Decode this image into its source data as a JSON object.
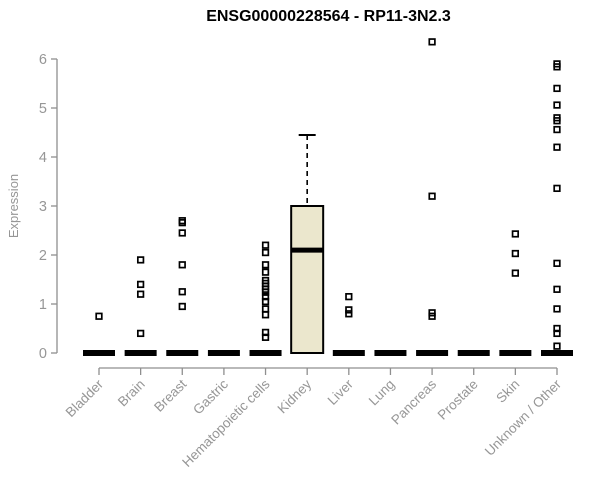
{
  "chart_data": {
    "type": "boxplot",
    "title": "ENSG00000228564 - RP11-3N2.3",
    "ylabel": "Expression",
    "xlabel": "",
    "ylim": [
      0,
      6
    ],
    "yticks": [
      0,
      1,
      2,
      3,
      4,
      5,
      6
    ],
    "legend": "none",
    "grid": false,
    "colors": {
      "box_fill": "#EBE7CD",
      "box_stroke": "#000000",
      "median": "#000000",
      "axis": "#8F8F8F",
      "tick_labels": "#969696",
      "title": "#000000",
      "points": "#000000"
    },
    "groups": [
      {
        "label": "Bladder",
        "q1": 0,
        "median": 0,
        "q3": 0,
        "whisker_low": 0,
        "whisker_high": 0,
        "points": [
          0.75
        ]
      },
      {
        "label": "Brain",
        "q1": 0,
        "median": 0,
        "q3": 0,
        "whisker_low": 0,
        "whisker_high": 0,
        "points": [
          1.9,
          1.4,
          1.2,
          0.4
        ]
      },
      {
        "label": "Breast",
        "q1": 0,
        "median": 0,
        "q3": 0,
        "whisker_low": 0,
        "whisker_high": 0,
        "points": [
          2.7,
          2.66,
          2.45,
          1.8,
          1.25,
          0.95
        ]
      },
      {
        "label": "Gastric",
        "q1": 0,
        "median": 0,
        "q3": 0,
        "whisker_low": 0,
        "whisker_high": 0,
        "points": []
      },
      {
        "label": "Hematopoietic cells",
        "q1": 0,
        "median": 0,
        "q3": 0,
        "whisker_low": 0,
        "whisker_high": 0,
        "points": [
          2.2,
          2.05,
          1.8,
          1.65,
          1.48,
          1.42,
          1.36,
          1.3,
          1.24,
          1.15,
          1.05,
          0.9,
          0.78,
          0.42,
          0.32
        ]
      },
      {
        "label": "Kidney",
        "q1": 0,
        "median": 2.1,
        "q3": 3.0,
        "whisker_low": 0,
        "whisker_high": 4.45,
        "points": []
      },
      {
        "label": "Liver",
        "q1": 0,
        "median": 0,
        "q3": 0,
        "whisker_low": 0,
        "whisker_high": 0,
        "points": [
          1.15,
          0.88,
          0.8
        ]
      },
      {
        "label": "Lung",
        "q1": 0,
        "median": 0,
        "q3": 0,
        "whisker_low": 0,
        "whisker_high": 0,
        "points": []
      },
      {
        "label": "Pancreas",
        "q1": 0,
        "median": 0,
        "q3": 0,
        "whisker_low": 0,
        "whisker_high": 0,
        "points": [
          6.35,
          3.2,
          0.82,
          0.75
        ]
      },
      {
        "label": "Prostate",
        "q1": 0,
        "median": 0,
        "q3": 0,
        "whisker_low": 0,
        "whisker_high": 0,
        "points": []
      },
      {
        "label": "Skin",
        "q1": 0,
        "median": 0,
        "q3": 0,
        "whisker_low": 0,
        "whisker_high": 0,
        "points": [
          2.43,
          2.03,
          1.63
        ]
      },
      {
        "label": "Unknown / Other",
        "q1": 0,
        "median": 0,
        "q3": 0,
        "whisker_low": 0,
        "whisker_high": 0,
        "points": [
          5.9,
          5.84,
          5.4,
          5.06,
          4.8,
          4.74,
          4.56,
          4.2,
          3.36,
          1.83,
          1.3,
          0.9,
          0.5,
          0.4,
          0.14
        ]
      }
    ]
  }
}
